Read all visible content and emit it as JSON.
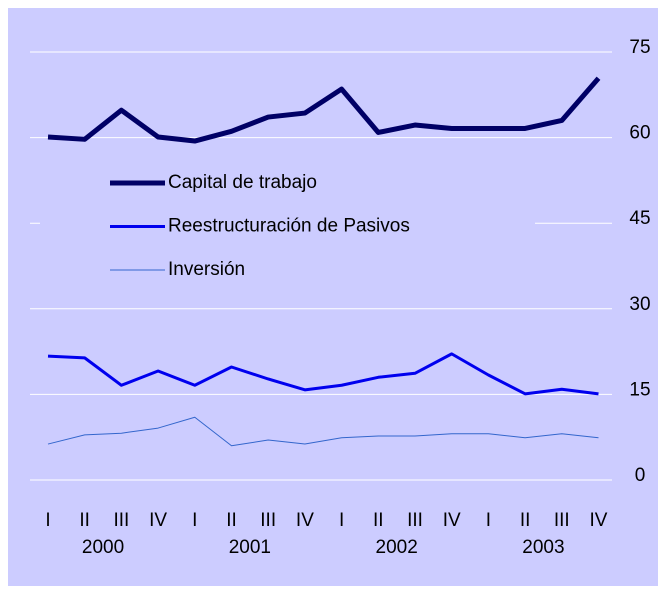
{
  "chart_data": {
    "type": "line",
    "categories": [
      "I",
      "II",
      "III",
      "IV",
      "I",
      "II",
      "III",
      "IV",
      "I",
      "II",
      "III",
      "IV",
      "I",
      "II",
      "III",
      "IV"
    ],
    "years": [
      "2000",
      "2001",
      "2002",
      "2003"
    ],
    "series": [
      {
        "name": "Capital de trabajo",
        "color": "#000066",
        "values": [
          60.1,
          59.7,
          64.8,
          60.1,
          59.4,
          61.1,
          63.6,
          64.3,
          68.5,
          60.9,
          62.2,
          61.6,
          61.6,
          61.6,
          63.0,
          70.4
        ]
      },
      {
        "name": "Reestructuración de Pasivos",
        "color": "#0000ee",
        "values": [
          21.7,
          21.4,
          16.6,
          19.1,
          16.6,
          19.8,
          17.7,
          15.8,
          16.6,
          18.0,
          18.7,
          22.1,
          18.4,
          15.1,
          15.9,
          15.1
        ]
      },
      {
        "name": "Inversión",
        "color": "#3366cc",
        "values": [
          6.3,
          7.9,
          8.2,
          9.1,
          11.0,
          6.0,
          7.0,
          6.3,
          7.4,
          7.7,
          7.7,
          8.1,
          8.1,
          7.4,
          8.1,
          7.4
        ]
      }
    ],
    "ylim": [
      0,
      75
    ],
    "yticks": [
      0,
      15,
      30,
      45,
      60,
      75
    ],
    "grid": true
  }
}
